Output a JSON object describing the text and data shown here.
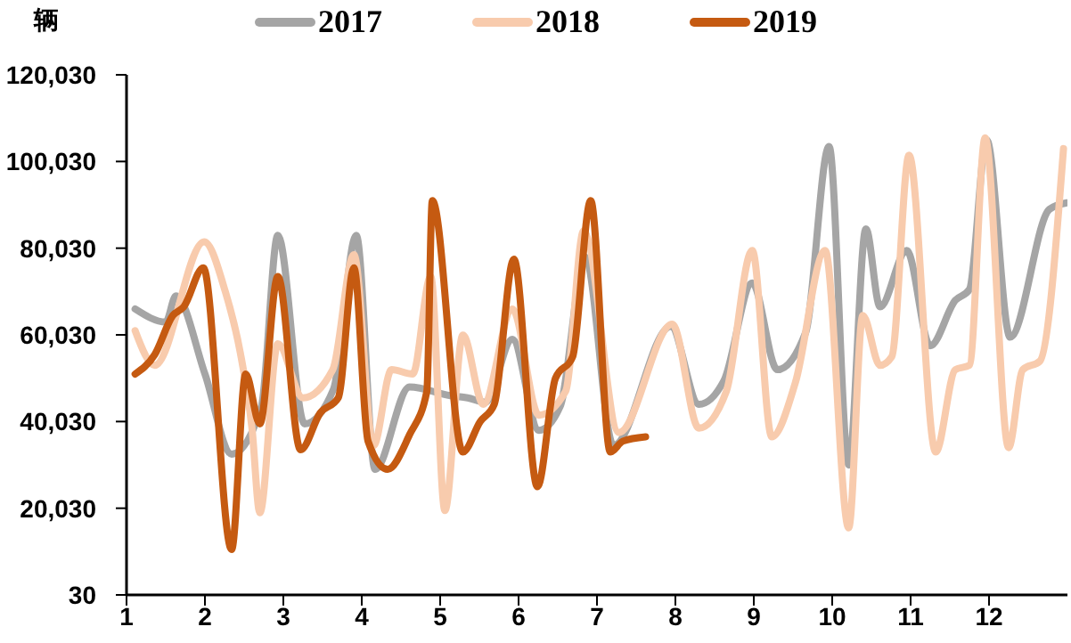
{
  "chart_data": {
    "type": "line",
    "ylabel": "辆",
    "legend": "top",
    "xlim": [
      1,
      13
    ],
    "xticks": [
      1,
      2,
      3,
      4,
      5,
      6,
      7,
      8,
      9,
      10,
      11,
      12
    ],
    "ylim": [
      30,
      120030
    ],
    "yticks": [
      30,
      {
        "value": 20030,
        "label": "20,030"
      },
      {
        "value": 40030,
        "label": "40,030"
      },
      {
        "value": 60030,
        "label": "60,030"
      },
      {
        "value": 80030,
        "label": "80,030"
      },
      {
        "value": 100030,
        "label": "100,030"
      },
      {
        "value": 120030,
        "label": "120,030"
      }
    ],
    "series": [
      {
        "name": "2017",
        "color": "#a5a5a5",
        "x": [
          1.11,
          1.5,
          1.63,
          2.0,
          2.34,
          2.72,
          2.93,
          3.27,
          3.64,
          3.93,
          4.17,
          4.61,
          5.13,
          5.35,
          5.58,
          5.92,
          6.26,
          6.53,
          6.85,
          7.21,
          7.94,
          8.3,
          8.62,
          8.98,
          9.3,
          9.66,
          9.96,
          10.21,
          10.43,
          10.61,
          10.95,
          11.25,
          11.57,
          11.75,
          11.97,
          12.27,
          12.77,
          12.99
        ],
        "values": [
          66000,
          63000,
          69000,
          51000,
          32500,
          43500,
          83000,
          39500,
          47500,
          83000,
          29000,
          48000,
          46000,
          45500,
          44500,
          59000,
          38000,
          43500,
          78000,
          34500,
          62000,
          44000,
          49500,
          72000,
          52000,
          60500,
          103500,
          30000,
          84500,
          66500,
          79500,
          57500,
          68000,
          70500,
          105000,
          59500,
          89000,
          90500
        ]
      },
      {
        "name": "2018",
        "color": "#f8cbad",
        "x": [
          1.11,
          1.36,
          1.99,
          2.26,
          2.45,
          2.6,
          2.7,
          2.93,
          3.25,
          3.63,
          3.9,
          4.15,
          4.38,
          4.65,
          4.88,
          5.06,
          5.29,
          5.55,
          5.92,
          6.26,
          6.6,
          6.83,
          7.28,
          7.96,
          8.3,
          8.65,
          8.98,
          9.23,
          9.53,
          9.91,
          10.21,
          10.39,
          10.61,
          10.76,
          10.98,
          11.32,
          11.57,
          11.75,
          11.95,
          12.25,
          12.43,
          12.65,
          12.95
        ],
        "values": [
          61000,
          53000,
          81500,
          70000,
          56000,
          38500,
          19000,
          58000,
          45500,
          52000,
          78500,
          34500,
          52000,
          51000,
          73500,
          19500,
          60000,
          44000,
          66000,
          41500,
          47000,
          84000,
          37500,
          62500,
          38500,
          47000,
          79500,
          36500,
          49000,
          79500,
          15500,
          64500,
          53000,
          55000,
          101500,
          33000,
          52000,
          53000,
          105500,
          34000,
          52000,
          54000,
          103000
        ]
      },
      {
        "name": "2019",
        "color": "#c55a11",
        "x": [
          1.11,
          1.36,
          1.59,
          1.73,
          1.98,
          2.34,
          2.52,
          2.7,
          2.93,
          3.22,
          3.47,
          3.7,
          3.9,
          4.08,
          4.33,
          4.61,
          4.83,
          4.9,
          5.29,
          5.51,
          5.69,
          5.94,
          6.24,
          6.47,
          6.69,
          6.92,
          7.17,
          7.33,
          7.62
        ],
        "values": [
          51000,
          55500,
          64500,
          66500,
          75500,
          10500,
          51000,
          39500,
          73500,
          33500,
          42000,
          45500,
          75500,
          35500,
          29000,
          37000,
          47000,
          91000,
          33000,
          40000,
          44000,
          77500,
          25000,
          50000,
          55000,
          91000,
          33000,
          35500,
          36500
        ]
      }
    ]
  }
}
